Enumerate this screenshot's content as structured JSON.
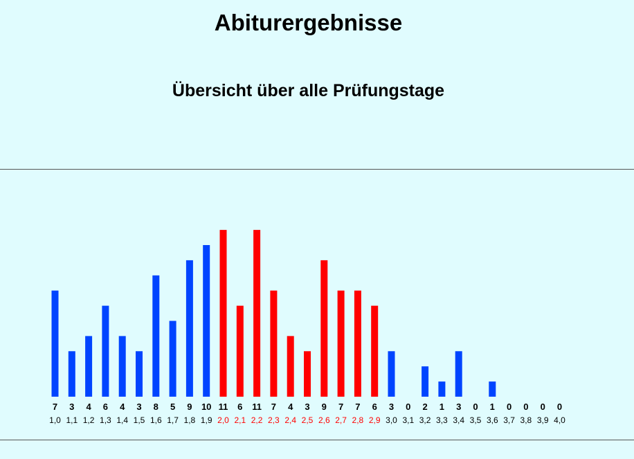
{
  "header": {
    "title": "Abiturergebnisse",
    "subtitle": "Übersicht über alle Prüfungstage"
  },
  "chart_data": {
    "type": "bar",
    "categories": [
      "1,0",
      "1,1",
      "1,2",
      "1,3",
      "1,4",
      "1,5",
      "1,6",
      "1,7",
      "1,8",
      "1,9",
      "2,0",
      "2,1",
      "2,2",
      "2,3",
      "2,4",
      "2,5",
      "2,6",
      "2,7",
      "2,8",
      "2,9",
      "3,0",
      "3,1",
      "3,2",
      "3,3",
      "3,4",
      "3,5",
      "3,6",
      "3,7",
      "3,8",
      "3,9",
      "4,0"
    ],
    "values": [
      7,
      3,
      4,
      6,
      4,
      3,
      8,
      5,
      9,
      10,
      11,
      6,
      11,
      7,
      4,
      3,
      9,
      7,
      7,
      6,
      3,
      0,
      2,
      1,
      3,
      0,
      1,
      0,
      0,
      0,
      0
    ],
    "highlight_range": [
      "2,0",
      "2,9"
    ],
    "colors": {
      "default": "#0044ff",
      "highlight": "#ff0000",
      "default_label": "#000000",
      "highlight_label": "#ff0000"
    },
    "title": "",
    "xlabel": "",
    "ylabel": "",
    "ylim": [
      0,
      11
    ],
    "grid": false,
    "data_labels": "below-bars"
  }
}
